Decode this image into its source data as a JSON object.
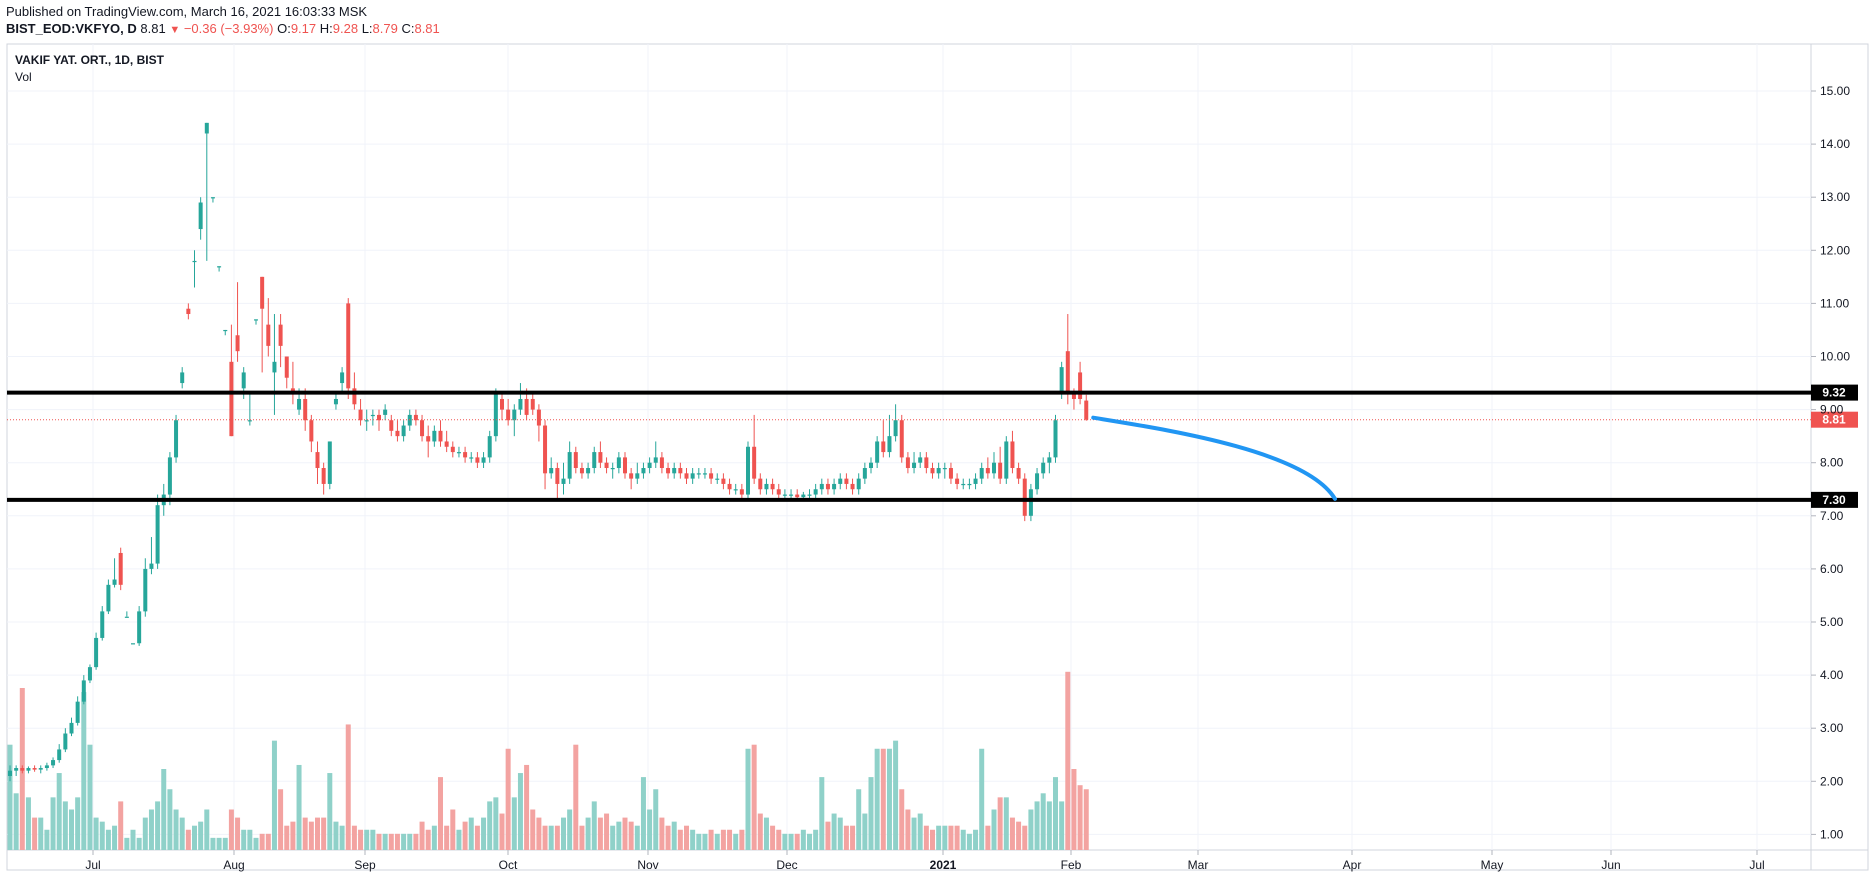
{
  "header": {
    "published": "Published on TradingView.com, March 16, 2021 16:03:33 MSK",
    "symbol": "BIST_EOD:VKFYO, D",
    "last": "8.81",
    "change": "−0.36 (−3.93%)",
    "o_label": "O:",
    "o_value": "9.17",
    "h_label": "H:",
    "h_value": "9.28",
    "l_label": "L:",
    "l_value": "8.79",
    "c_label": "C:",
    "c_value": "8.81"
  },
  "legend": {
    "title": "VAKIF YAT. ORT., 1D, BIST",
    "volume": "Vol"
  },
  "colors": {
    "up": "#26a69a",
    "down": "#ef5350",
    "vol_up": "#8fd1c9",
    "vol_down": "#f3a3a1",
    "level_line": "#000000",
    "curve": "#2196f3",
    "grid": "#f0f3fa",
    "axis_text": "#131722",
    "current_price": "#ef5350"
  },
  "chart_data": {
    "type": "candlestick",
    "x_labels": [
      "Jul",
      "Aug",
      "Sep",
      "Oct",
      "Nov",
      "Dec",
      "2021",
      "Feb",
      "Mar",
      "Apr",
      "May",
      "Jun",
      "Jul"
    ],
    "y_ticks": [
      "15.00",
      "14.00",
      "13.00",
      "12.00",
      "11.00",
      "10.00",
      "9.00",
      "8.00",
      "7.00",
      "6.00",
      "5.00",
      "4.00",
      "3.00",
      "2.00",
      "1.00"
    ],
    "ylim": [
      0.7,
      15.7
    ],
    "y_scale": "linear",
    "grid": true,
    "levels": [
      {
        "label": "9.32",
        "value": 9.32
      },
      {
        "label": "7.30",
        "value": 7.3
      }
    ],
    "current_price": {
      "label": "8.81",
      "value": 8.81
    },
    "projection": {
      "from": 8.81,
      "to": 7.3,
      "color": "blue"
    },
    "ohlcv": [
      [
        2.1,
        2.3,
        2.0,
        2.2,
        2.6
      ],
      [
        2.2,
        2.3,
        2.1,
        2.25,
        1.4
      ],
      [
        2.25,
        2.3,
        2.15,
        2.2,
        4.0
      ],
      [
        2.2,
        2.28,
        2.15,
        2.25,
        1.3
      ],
      [
        2.25,
        2.3,
        2.18,
        2.22,
        0.8
      ],
      [
        2.22,
        2.3,
        2.15,
        2.25,
        0.8
      ],
      [
        2.25,
        2.35,
        2.2,
        2.3,
        0.5
      ],
      [
        2.3,
        2.45,
        2.25,
        2.4,
        1.3
      ],
      [
        2.4,
        2.7,
        2.35,
        2.6,
        1.9
      ],
      [
        2.6,
        3.0,
        2.55,
        2.9,
        1.2
      ],
      [
        2.9,
        3.2,
        2.85,
        3.1,
        1.0
      ],
      [
        3.1,
        3.6,
        3.05,
        3.5,
        1.3
      ],
      [
        3.5,
        4.0,
        3.45,
        3.9,
        3.9
      ],
      [
        3.9,
        4.2,
        3.85,
        4.15,
        2.6
      ],
      [
        4.15,
        4.8,
        4.1,
        4.7,
        0.8
      ],
      [
        4.7,
        5.3,
        4.65,
        5.2,
        0.7
      ],
      [
        5.2,
        5.8,
        5.15,
        5.7,
        0.5
      ],
      [
        5.7,
        6.2,
        5.65,
        5.8,
        0.6
      ],
      [
        6.3,
        6.4,
        5.6,
        5.7,
        1.2
      ],
      [
        5.1,
        5.2,
        5.1,
        5.1,
        0.3
      ],
      [
        4.6,
        4.6,
        4.6,
        4.6,
        0.5
      ],
      [
        4.6,
        5.3,
        4.55,
        5.2,
        0.3
      ],
      [
        5.2,
        6.2,
        5.1,
        6.0,
        0.8
      ],
      [
        6.0,
        6.6,
        5.9,
        6.1,
        1.0
      ],
      [
        6.1,
        7.4,
        6.0,
        7.2,
        1.2
      ],
      [
        7.2,
        7.6,
        7.0,
        7.4,
        2.0
      ],
      [
        7.4,
        8.2,
        7.2,
        8.1,
        1.5
      ],
      [
        8.1,
        8.9,
        8.0,
        8.8,
        1.0
      ],
      [
        9.5,
        9.8,
        9.4,
        9.7,
        0.8
      ],
      [
        10.9,
        11.0,
        10.7,
        10.8,
        0.5
      ],
      [
        11.8,
        12.0,
        11.3,
        11.8,
        0.6
      ],
      [
        12.4,
        13.0,
        12.2,
        12.9,
        0.7
      ],
      [
        14.2,
        14.4,
        11.8,
        14.4,
        1.0
      ],
      [
        13.0,
        13.0,
        12.9,
        13.0,
        0.3
      ],
      [
        11.7,
        11.7,
        11.6,
        11.7,
        0.3
      ],
      [
        10.5,
        10.5,
        10.4,
        10.5,
        0.3
      ],
      [
        9.9,
        10.6,
        8.5,
        8.5,
        1.0
      ],
      [
        10.4,
        11.4,
        9.9,
        10.1,
        0.8
      ],
      [
        9.4,
        9.8,
        9.2,
        9.7,
        0.5
      ],
      [
        8.8,
        9.3,
        8.7,
        8.8,
        0.5
      ],
      [
        10.7,
        10.7,
        10.6,
        10.7,
        0.3
      ],
      [
        11.5,
        11.5,
        9.7,
        10.9,
        0.4
      ],
      [
        10.6,
        11.1,
        10.0,
        10.2,
        0.4
      ],
      [
        9.7,
        10.8,
        8.9,
        9.9,
        2.7
      ],
      [
        10.6,
        10.8,
        9.8,
        10.2,
        1.5
      ],
      [
        10.0,
        10.0,
        9.4,
        9.6,
        0.6
      ],
      [
        9.4,
        9.9,
        9.1,
        9.3,
        0.7
      ],
      [
        9.0,
        9.4,
        8.9,
        9.2,
        2.1
      ],
      [
        9.2,
        9.4,
        8.6,
        8.8,
        0.8
      ],
      [
        8.8,
        8.9,
        8.2,
        8.4,
        0.7
      ],
      [
        8.2,
        8.4,
        7.6,
        7.9,
        0.8
      ],
      [
        7.9,
        8.0,
        7.4,
        7.6,
        0.8
      ],
      [
        7.6,
        8.4,
        7.5,
        8.4,
        1.9
      ],
      [
        9.1,
        9.3,
        9.0,
        9.2,
        0.7
      ],
      [
        9.5,
        9.8,
        9.3,
        9.7,
        0.6
      ],
      [
        11.0,
        11.1,
        9.2,
        9.4,
        3.1
      ],
      [
        9.4,
        9.7,
        9.0,
        9.1,
        0.6
      ],
      [
        9.0,
        9.2,
        8.7,
        8.8,
        0.5
      ],
      [
        8.8,
        9.0,
        8.6,
        8.8,
        0.5
      ],
      [
        8.9,
        9.0,
        8.7,
        8.9,
        0.5
      ],
      [
        8.9,
        9.0,
        8.6,
        8.8,
        0.4
      ],
      [
        8.9,
        9.1,
        8.8,
        9.0,
        0.4
      ],
      [
        8.8,
        8.9,
        8.5,
        8.6,
        0.4
      ],
      [
        8.6,
        8.8,
        8.4,
        8.5,
        0.4
      ],
      [
        8.5,
        8.8,
        8.4,
        8.7,
        0.4
      ],
      [
        8.7,
        9.0,
        8.6,
        8.9,
        0.4
      ],
      [
        8.9,
        9.0,
        8.7,
        8.8,
        0.4
      ],
      [
        8.8,
        8.9,
        8.4,
        8.5,
        0.7
      ],
      [
        8.5,
        8.7,
        8.1,
        8.4,
        0.5
      ],
      [
        8.4,
        8.7,
        8.3,
        8.6,
        0.6
      ],
      [
        8.6,
        8.8,
        8.3,
        8.4,
        1.8
      ],
      [
        8.4,
        8.6,
        8.2,
        8.3,
        0.6
      ],
      [
        8.3,
        8.4,
        8.1,
        8.2,
        1.0
      ],
      [
        8.2,
        8.3,
        8.1,
        8.2,
        0.5
      ],
      [
        8.2,
        8.3,
        8.0,
        8.1,
        0.7
      ],
      [
        8.1,
        8.2,
        8.0,
        8.1,
        0.8
      ],
      [
        8.1,
        8.2,
        7.9,
        8.0,
        0.6
      ],
      [
        8.0,
        8.2,
        7.9,
        8.1,
        0.8
      ],
      [
        8.1,
        8.6,
        8.0,
        8.5,
        1.2
      ],
      [
        8.5,
        9.4,
        8.4,
        9.3,
        1.3
      ],
      [
        9.2,
        9.3,
        8.8,
        9.0,
        0.9
      ],
      [
        9.0,
        9.2,
        8.7,
        8.8,
        2.5
      ],
      [
        8.8,
        9.1,
        8.5,
        9.0,
        1.3
      ],
      [
        9.0,
        9.5,
        8.9,
        9.2,
        1.9
      ],
      [
        9.2,
        9.4,
        8.8,
        8.9,
        2.1
      ],
      [
        9.2,
        9.3,
        8.9,
        9.0,
        1.0
      ],
      [
        9.0,
        9.1,
        8.4,
        8.7,
        0.8
      ],
      [
        8.7,
        8.8,
        7.5,
        7.8,
        0.6
      ],
      [
        7.8,
        8.1,
        7.7,
        7.9,
        0.6
      ],
      [
        7.9,
        8.0,
        7.3,
        7.6,
        0.6
      ],
      [
        7.6,
        8.0,
        7.4,
        7.7,
        0.8
      ],
      [
        7.7,
        8.4,
        7.6,
        8.2,
        1.0
      ],
      [
        8.2,
        8.3,
        7.8,
        7.9,
        2.6
      ],
      [
        7.9,
        8.0,
        7.7,
        7.8,
        0.6
      ],
      [
        7.8,
        8.0,
        7.7,
        7.9,
        0.8
      ],
      [
        7.9,
        8.3,
        7.8,
        8.2,
        1.2
      ],
      [
        8.2,
        8.4,
        7.9,
        8.0,
        0.8
      ],
      [
        8.0,
        8.1,
        7.8,
        7.9,
        0.9
      ],
      [
        7.9,
        8.0,
        7.7,
        7.9,
        0.6
      ],
      [
        7.9,
        8.2,
        7.8,
        8.1,
        0.7
      ],
      [
        8.1,
        8.2,
        7.7,
        7.8,
        0.8
      ],
      [
        7.8,
        7.9,
        7.5,
        7.7,
        0.7
      ],
      [
        7.7,
        8.0,
        7.6,
        7.8,
        0.6
      ],
      [
        7.8,
        8.0,
        7.7,
        7.9,
        1.8
      ],
      [
        7.9,
        8.1,
        7.8,
        8.0,
        1.0
      ],
      [
        8.0,
        8.4,
        7.9,
        8.1,
        1.5
      ],
      [
        8.1,
        8.2,
        7.8,
        7.9,
        0.8
      ],
      [
        7.9,
        8.0,
        7.7,
        7.8,
        0.6
      ],
      [
        7.8,
        8.0,
        7.7,
        7.9,
        0.7
      ],
      [
        7.9,
        8.0,
        7.7,
        7.8,
        0.5
      ],
      [
        7.8,
        7.9,
        7.6,
        7.7,
        0.6
      ],
      [
        7.7,
        7.9,
        7.6,
        7.8,
        0.5
      ],
      [
        7.8,
        7.9,
        7.7,
        7.8,
        0.4
      ],
      [
        7.8,
        7.9,
        7.7,
        7.8,
        0.4
      ],
      [
        7.8,
        7.9,
        7.6,
        7.7,
        0.5
      ],
      [
        7.7,
        7.8,
        7.6,
        7.7,
        0.4
      ],
      [
        7.7,
        7.8,
        7.5,
        7.6,
        0.5
      ],
      [
        7.6,
        7.7,
        7.4,
        7.5,
        0.5
      ],
      [
        7.5,
        7.6,
        7.4,
        7.5,
        0.4
      ],
      [
        7.5,
        7.6,
        7.3,
        7.4,
        0.5
      ],
      [
        7.4,
        8.4,
        7.3,
        8.3,
        2.5
      ],
      [
        8.3,
        8.9,
        7.6,
        7.7,
        2.6
      ],
      [
        7.7,
        7.8,
        7.4,
        7.5,
        0.9
      ],
      [
        7.5,
        7.7,
        7.4,
        7.6,
        0.8
      ],
      [
        7.6,
        7.7,
        7.4,
        7.5,
        0.6
      ],
      [
        7.5,
        7.6,
        7.3,
        7.4,
        0.5
      ],
      [
        7.4,
        7.5,
        7.3,
        7.4,
        0.4
      ],
      [
        7.4,
        7.5,
        7.3,
        7.4,
        0.4
      ],
      [
        7.4,
        7.5,
        7.3,
        7.35,
        0.4
      ],
      [
        7.35,
        7.45,
        7.3,
        7.4,
        0.5
      ],
      [
        7.4,
        7.5,
        7.3,
        7.4,
        0.4
      ],
      [
        7.4,
        7.6,
        7.3,
        7.5,
        0.5
      ],
      [
        7.5,
        7.7,
        7.4,
        7.6,
        1.8
      ],
      [
        7.6,
        7.7,
        7.4,
        7.5,
        0.7
      ],
      [
        7.5,
        7.7,
        7.4,
        7.6,
        0.9
      ],
      [
        7.6,
        7.8,
        7.5,
        7.7,
        0.8
      ],
      [
        7.7,
        7.8,
        7.5,
        7.6,
        0.6
      ],
      [
        7.6,
        7.7,
        7.4,
        7.5,
        0.6
      ],
      [
        7.5,
        7.8,
        7.4,
        7.7,
        1.5
      ],
      [
        7.7,
        8.0,
        7.6,
        7.9,
        0.9
      ],
      [
        7.9,
        8.1,
        7.8,
        8.0,
        1.8
      ],
      [
        8.0,
        8.5,
        7.9,
        8.4,
        2.5
      ],
      [
        8.4,
        8.8,
        8.1,
        8.2,
        2.5
      ],
      [
        8.2,
        8.9,
        8.1,
        8.5,
        2.5
      ],
      [
        8.5,
        9.1,
        8.4,
        8.8,
        2.7
      ],
      [
        8.8,
        8.9,
        8.0,
        8.1,
        1.5
      ],
      [
        8.1,
        8.2,
        7.8,
        7.9,
        1.0
      ],
      [
        7.9,
        8.2,
        7.8,
        8.0,
        0.8
      ],
      [
        8.0,
        8.2,
        7.9,
        8.1,
        0.9
      ],
      [
        8.1,
        8.2,
        7.8,
        7.9,
        0.6
      ],
      [
        7.9,
        8.0,
        7.7,
        7.8,
        0.5
      ],
      [
        7.8,
        8.0,
        7.7,
        7.9,
        0.6
      ],
      [
        7.9,
        8.0,
        7.7,
        7.9,
        0.6
      ],
      [
        7.9,
        8.0,
        7.6,
        7.7,
        0.6
      ],
      [
        7.7,
        7.8,
        7.5,
        7.6,
        0.6
      ],
      [
        7.6,
        7.7,
        7.5,
        7.6,
        0.5
      ],
      [
        7.6,
        7.7,
        7.5,
        7.6,
        0.4
      ],
      [
        7.6,
        7.8,
        7.5,
        7.7,
        0.5
      ],
      [
        7.7,
        8.0,
        7.6,
        7.9,
        2.5
      ],
      [
        7.9,
        8.1,
        7.7,
        7.8,
        0.6
      ],
      [
        7.8,
        8.2,
        7.7,
        8.0,
        1.0
      ],
      [
        8.0,
        8.3,
        7.6,
        7.7,
        1.3
      ],
      [
        7.7,
        8.5,
        7.6,
        8.4,
        1.3
      ],
      [
        8.4,
        8.6,
        7.8,
        7.9,
        0.8
      ],
      [
        7.9,
        8.0,
        7.6,
        7.7,
        0.7
      ],
      [
        7.7,
        7.8,
        6.9,
        7.0,
        0.6
      ],
      [
        7.0,
        7.6,
        6.9,
        7.5,
        1.0
      ],
      [
        7.5,
        7.9,
        7.4,
        7.8,
        1.2
      ],
      [
        7.8,
        8.1,
        7.7,
        8.0,
        1.4
      ],
      [
        8.0,
        8.2,
        7.8,
        8.1,
        1.2
      ],
      [
        8.1,
        8.9,
        8.0,
        8.8,
        1.8
      ],
      [
        9.3,
        9.9,
        9.2,
        9.8,
        1.2
      ],
      [
        10.1,
        10.8,
        9.1,
        9.3,
        4.4
      ],
      [
        9.3,
        9.4,
        9.0,
        9.2,
        2.0
      ],
      [
        9.7,
        9.9,
        9.1,
        9.2,
        1.6
      ],
      [
        9.17,
        9.28,
        8.79,
        8.81,
        1.5
      ]
    ]
  }
}
